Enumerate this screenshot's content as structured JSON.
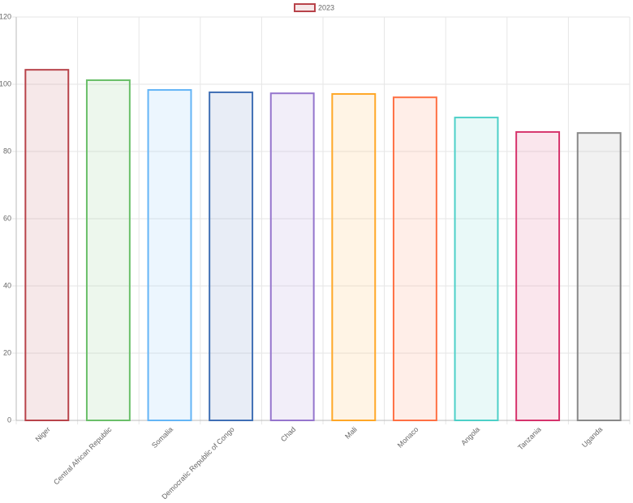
{
  "chart_data": {
    "type": "bar",
    "categories": [
      "Niger",
      "Central African Republic",
      "Somalia",
      "Democratic Republic of Congo",
      "Chad",
      "Mali",
      "Monaco",
      "Angola",
      "Tanzania",
      "Uganda"
    ],
    "series": [
      {
        "name": "2023",
        "values": [
          104.3,
          101.2,
          98.3,
          97.6,
          97.3,
          97.1,
          96.1,
          90.1,
          85.8,
          85.5
        ],
        "colors": [
          "#b8434a",
          "#6abf69",
          "#64b5f6",
          "#3f6fb5",
          "#9575cd",
          "#ffa726",
          "#ff7043",
          "#4dd0c8",
          "#d6336c",
          "#888888"
        ]
      }
    ],
    "ylim": [
      0,
      120
    ],
    "yticks": [
      0,
      20,
      40,
      60,
      80,
      100,
      120
    ],
    "grid": true,
    "legend": "top"
  }
}
